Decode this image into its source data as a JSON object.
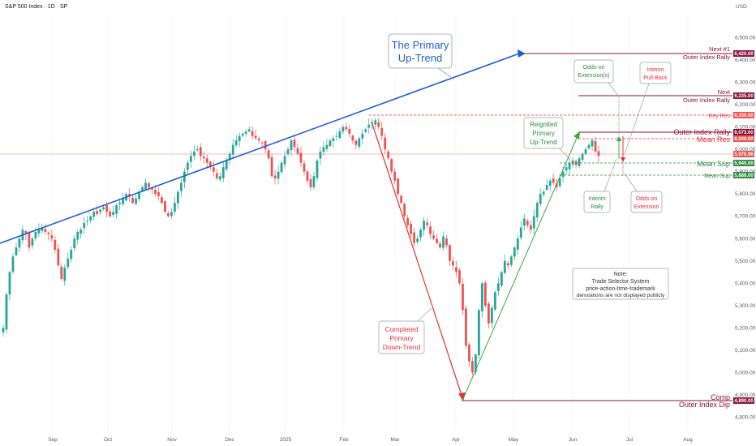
{
  "header": {
    "title": "S&P 500 Index · 1D · SP"
  },
  "axis": {
    "currency": "USD",
    "y_ticks": [
      "6,500.00",
      "6,400.00",
      "6,300.00",
      "6,200.00",
      "6,100.00",
      "6,000.00",
      "5,900.00",
      "5,800.00",
      "5,700.00",
      "5,600.00",
      "5,500.00",
      "5,400.00",
      "5,300.00",
      "5,200.00",
      "5,100.00",
      "5,000.00",
      "4,900.00",
      "4,800.00"
    ],
    "x_ticks": [
      "Sep",
      "Oct",
      "Nov",
      "Dec",
      "2025",
      "Feb",
      "Mar",
      "Apr",
      "May",
      "Jun",
      "Jul",
      "Aug"
    ]
  },
  "price_tags": {
    "next1": "6,420.00",
    "next": "6,235.00",
    "key_res": "6,150.00",
    "outer_rally": "6,073.00",
    "mean_res": "6,046.00",
    "last": "5,976.96",
    "mean_sup": "5,940.00",
    "mean_sup2": "5,888.00",
    "comp": "4,890.00"
  },
  "right_labels": {
    "next1_a": "Next #1",
    "next1_b": "Outer Index Rally",
    "next_a": "Next",
    "next_b": "Outer Index Rally",
    "key_res": "Key Res",
    "outer_rally": "Outer Index Rally",
    "mean_res": "Mean Res",
    "mean_sup": "Mean Sup",
    "mean_sup2": "Mean Sup",
    "comp_a": "Comp",
    "comp_b": "Outer Index Dip"
  },
  "callouts": {
    "primary_a": "The Primary",
    "primary_b": "Up-Trend",
    "reignited_a": "Reignited",
    "reignited_b": "Primary",
    "reignited_c": "Up-Trend",
    "completed_a": "Completed",
    "completed_b": "Primary",
    "completed_c": "Down-Trend",
    "oddson_ext_a": "Odds-on",
    "oddson_ext_b": "Extension(s)",
    "interim_pb_a": "Interim",
    "interim_pb_b": "Pull-Back",
    "interim_rally_a": "Interim",
    "interim_rally_b": "Rally",
    "oddson_b_a": "Odds-on",
    "oddson_b_b": "Extension",
    "note_a": "Note:",
    "note_b": "Trade Selector System",
    "note_c": "price-action-time-trademark",
    "note_d": "denotations are not displayed publicly"
  },
  "colors": {
    "up": "#26a69a",
    "down": "#ef5350",
    "trend_up": "#1f5fd4",
    "trend_down": "#e8303a",
    "trend_up2": "#3ea83e",
    "level_maroon": "#8a1538",
    "level_green": "#2e8b3e",
    "level_red": "#e8303a"
  },
  "chart_data": {
    "type": "candlestick",
    "symbol": "S&P 500 Index",
    "interval": "1D",
    "ylim": [
      4780,
      6560
    ],
    "y_scale": "linear",
    "x_labels": [
      "Sep",
      "Oct",
      "Nov",
      "Dec",
      "2025",
      "Feb",
      "Mar",
      "Apr",
      "May",
      "Jun",
      "Jul",
      "Aug"
    ],
    "levels": [
      {
        "name": "Next #1 Outer Index Rally",
        "value": 6420
      },
      {
        "name": "Next Outer Index Rally",
        "value": 6235
      },
      {
        "name": "Key Res",
        "value": 6150
      },
      {
        "name": "Outer Index Rally",
        "value": 6073
      },
      {
        "name": "Mean Res",
        "value": 6046
      },
      {
        "name": "Mean Sup",
        "value": 5940
      },
      {
        "name": "Mean Sup",
        "value": 5888
      },
      {
        "name": "Comp Outer Index Dip",
        "value": 4890
      }
    ],
    "last_price": 5976.96,
    "closes_approx": [
      5200,
      5350,
      5450,
      5520,
      5560,
      5600,
      5640,
      5620,
      5560,
      5600,
      5630,
      5640,
      5650,
      5630,
      5620,
      5600,
      5550,
      5480,
      5420,
      5470,
      5510,
      5550,
      5600,
      5630,
      5640,
      5670,
      5680,
      5700,
      5720,
      5710,
      5730,
      5740,
      5720,
      5700,
      5720,
      5750,
      5760,
      5780,
      5800,
      5790,
      5760,
      5780,
      5810,
      5830,
      5850,
      5830,
      5820,
      5800,
      5790,
      5760,
      5720,
      5700,
      5720,
      5760,
      5810,
      5850,
      5900,
      5940,
      5970,
      5990,
      6000,
      5970,
      5960,
      5940,
      5920,
      5900,
      5870,
      5880,
      5920,
      5950,
      5980,
      6020,
      6040,
      6060,
      6070,
      6080,
      6090,
      6060,
      6050,
      6040,
      6030,
      6000,
      5960,
      5880,
      5870,
      5900,
      5940,
      5970,
      6000,
      6040,
      6010,
      5980,
      5940,
      5900,
      5860,
      5830,
      5880,
      5950,
      5990,
      6010,
      6020,
      6040,
      6050,
      6060,
      6080,
      6100,
      6090,
      6070,
      6040,
      6020,
      6050,
      6070,
      6090,
      6110,
      6120,
      6130,
      6100,
      6060,
      6000,
      5960,
      5900,
      5860,
      5800,
      5760,
      5700,
      5660,
      5620,
      5580,
      5600,
      5640,
      5680,
      5660,
      5620,
      5600,
      5580,
      5560,
      5610,
      5570,
      5500,
      5480,
      5450,
      5400,
      5280,
      5120,
      5050,
      5000,
      5080,
      5280,
      5400,
      5300,
      5220,
      5290,
      5360,
      5400,
      5450,
      5500,
      5480,
      5520,
      5560,
      5600,
      5650,
      5690,
      5660,
      5640,
      5700,
      5760,
      5800,
      5810,
      5840,
      5860,
      5850,
      5830,
      5870,
      5900,
      5920,
      5940,
      5950,
      5930,
      5960,
      5980,
      6000,
      6020,
      6040,
      5990,
      5970
    ]
  }
}
